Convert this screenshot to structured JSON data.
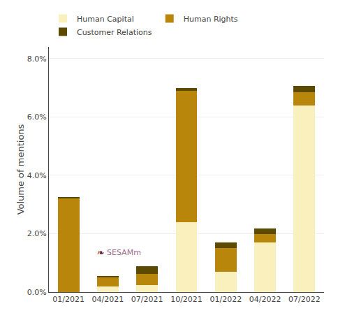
{
  "chart_data": {
    "type": "bar",
    "stacked": true,
    "ylabel": "Volume of mentions",
    "categories": [
      "01/2021",
      "04/2021",
      "07/2021",
      "10/2021",
      "01/2022",
      "04/2022",
      "07/2022"
    ],
    "series": [
      {
        "name": "Human Capital",
        "color": "#FAF0BE",
        "values": [
          0.0,
          0.2,
          0.25,
          2.4,
          0.7,
          1.7,
          6.4
        ]
      },
      {
        "name": "Human Rights",
        "color": "#B8860B",
        "values": [
          3.2,
          0.3,
          0.38,
          4.5,
          0.8,
          0.28,
          0.45
        ]
      },
      {
        "name": "Customer Relations",
        "color": "#5C4A00",
        "values": [
          0.05,
          0.05,
          0.25,
          0.1,
          0.2,
          0.2,
          0.2
        ]
      }
    ],
    "ylim": [
      0,
      8.4
    ],
    "yticks": [
      {
        "value": 0.0,
        "label": "0.0%"
      },
      {
        "value": 2.0,
        "label": "2.0%"
      },
      {
        "value": 4.0,
        "label": "4.0%"
      },
      {
        "value": 6.0,
        "label": "6.0%"
      },
      {
        "value": 8.0,
        "label": "8.0%"
      }
    ],
    "grid": true,
    "legend": "top",
    "annotations": [
      "❧",
      "SESAMm"
    ]
  }
}
